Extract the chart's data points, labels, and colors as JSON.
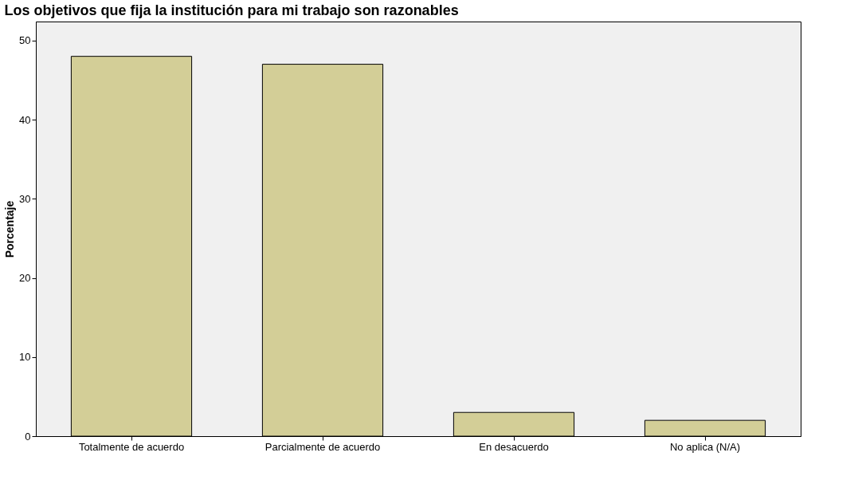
{
  "chart_data": {
    "type": "bar",
    "title": "Los objetivos que fija la institución para mi trabajo son razonables",
    "ylabel": "Porcentaje",
    "categories": [
      "Totalmente de acuerdo",
      "Parcialmente de acuerdo",
      "En desacuerdo",
      "No aplica (N/A)"
    ],
    "values": [
      48,
      47,
      3,
      2
    ],
    "color": "#d3ce97",
    "ylim": [
      0,
      52.4
    ],
    "yticks": [
      0,
      10,
      20,
      30,
      40,
      50
    ],
    "grid": false
  }
}
